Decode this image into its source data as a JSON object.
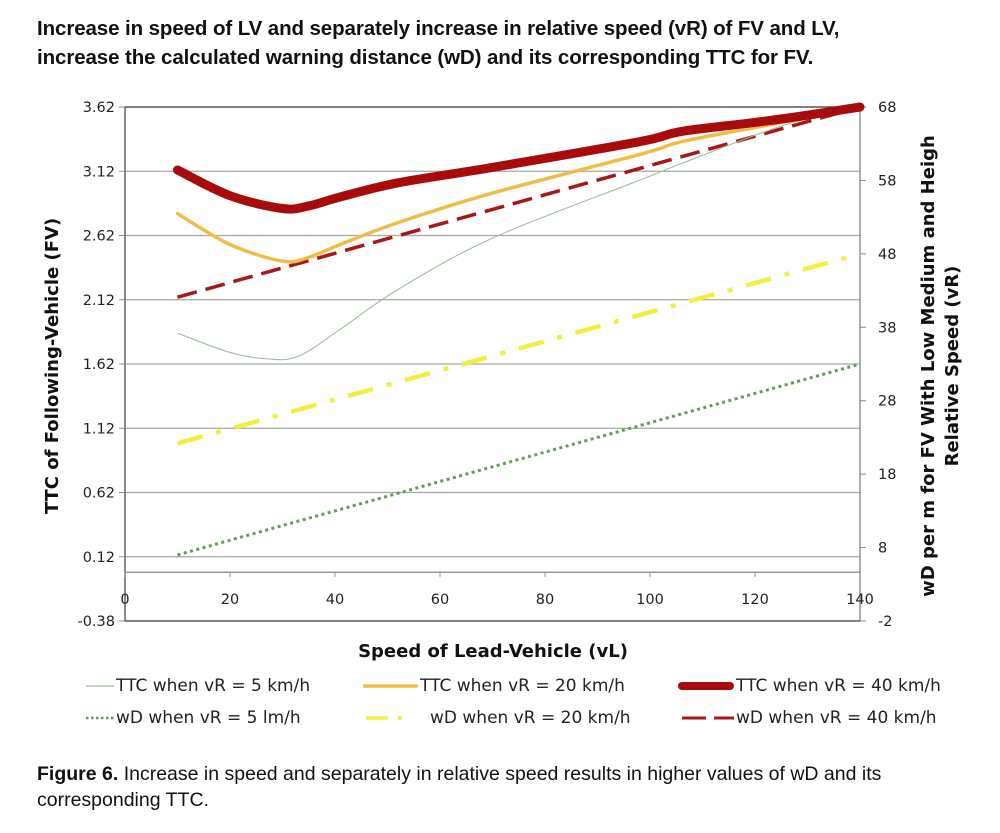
{
  "title": {
    "line1": "Increase in speed of LV and separately increase in relative speed (vR) of FV and LV,",
    "line2": "increase the calculated warning distance (wD) and its corresponding TTC for FV."
  },
  "caption": {
    "label": "Figure 6.",
    "text": " Increase in speed and separately in relative speed results in higher values of wD and its corresponding TTC."
  },
  "chart_data": {
    "type": "line",
    "title": "Increase in speed of LV and separately increase in relative speed (vR) of FV and LV, increase the calculated warning distance (wD) and its corresponding TTC for FV.",
    "xlabel": "Speed of Lead-Vehicle (vL)",
    "ylabel": "TTC of Following-Vehicle (FV)",
    "y2label_line1": "wD per m for FV With Low Medium and Heigh",
    "y2label_line2": "Relative Speed (vR)",
    "xlim": [
      0,
      140
    ],
    "ylim": [
      -0.38,
      3.62
    ],
    "y2lim": [
      -2,
      68
    ],
    "x_axis_crosses_y": 0,
    "xticks": [
      0,
      20,
      40,
      60,
      80,
      100,
      120,
      140
    ],
    "yticks": [
      "3.62",
      "3.12",
      "2.62",
      "2.12",
      "1.62",
      "1.12",
      "0.62",
      "0.12",
      "-0.38"
    ],
    "y2ticks": [
      "68",
      "58",
      "48",
      "38",
      "28",
      "18",
      "8",
      "-2"
    ],
    "grid": true,
    "legend_position": "bottom",
    "series": [
      {
        "name": "TTC when vR = 5 km/h",
        "axis": "left",
        "color": "#9dbf9a",
        "style": "solid-thin",
        "x": [
          10,
          20,
          27,
          33,
          41,
          52,
          70,
          98,
          106,
          120,
          129,
          140
        ],
        "y": [
          1.86,
          1.71,
          1.66,
          1.68,
          1.89,
          2.2,
          2.6,
          3.05,
          3.18,
          3.4,
          3.52,
          3.62
        ]
      },
      {
        "name": "TTC when vR = 20 km/h",
        "axis": "left",
        "color": "#efbd45",
        "style": "solid",
        "x": [
          10,
          20,
          30,
          35,
          41,
          52,
          70,
          98,
          106,
          120,
          129,
          140
        ],
        "y": [
          2.79,
          2.55,
          2.42,
          2.45,
          2.55,
          2.72,
          2.95,
          3.25,
          3.35,
          3.46,
          3.53,
          3.62
        ]
      },
      {
        "name": "TTC when vR = 40 km/h",
        "axis": "left",
        "color": "#a80b0b",
        "style": "solid-thick",
        "x": [
          10,
          20,
          30,
          35,
          41,
          52,
          70,
          98,
          106,
          120,
          129,
          140
        ],
        "y": [
          3.13,
          2.93,
          2.83,
          2.85,
          2.92,
          3.03,
          3.15,
          3.35,
          3.43,
          3.5,
          3.55,
          3.62
        ]
      },
      {
        "name": "wD when vR = 5 lm/h",
        "axis": "right",
        "color": "#5f9e52",
        "style": "dotted",
        "x": [
          10,
          140
        ],
        "y": [
          7,
          33
        ]
      },
      {
        "name": "wD when vR = 20 km/h",
        "axis": "right",
        "color": "#f4ee3e",
        "style": "dash-dot",
        "x": [
          10,
          140
        ],
        "y": [
          22.2,
          48
        ]
      },
      {
        "name": "wD when vR = 40 km/h",
        "axis": "right",
        "color": "#a8171a",
        "style": "dashed",
        "x": [
          10,
          140
        ],
        "y": [
          42.1,
          68
        ]
      }
    ]
  }
}
